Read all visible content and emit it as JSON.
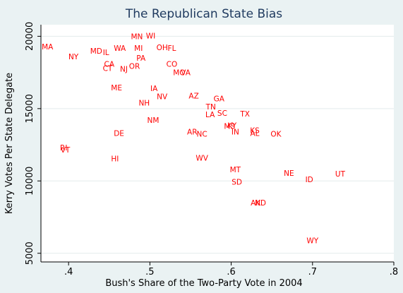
{
  "chart_data": {
    "type": "scatter",
    "title": "The Republican State Bias",
    "xlabel": "Bush's Share of the Two-Party Vote in 2004",
    "ylabel": "Kerry Votes Per State Delegate",
    "xlim": [
      0.366,
      0.8
    ],
    "ylim": [
      4400,
      20800
    ],
    "x_ticks": [
      0.4,
      0.5,
      0.6,
      0.7,
      0.8
    ],
    "x_tick_labels": [
      ".4",
      ".5",
      ".6",
      ".7",
      ".8"
    ],
    "y_ticks": [
      5000,
      10000,
      15000,
      20000
    ],
    "y_tick_labels": [
      "5000",
      "10000",
      "15000",
      "20000"
    ],
    "grid": "horizontal",
    "marker_color": "#ff0000",
    "points": [
      {
        "label": "MA",
        "x": 0.374,
        "y": 19250
      },
      {
        "label": "NY",
        "x": 0.406,
        "y": 18550
      },
      {
        "label": "MD",
        "x": 0.434,
        "y": 18950
      },
      {
        "label": "IL",
        "x": 0.446,
        "y": 18850
      },
      {
        "label": "CA",
        "x": 0.45,
        "y": 18050
      },
      {
        "label": "CT",
        "x": 0.448,
        "y": 17750
      },
      {
        "label": "WA",
        "x": 0.463,
        "y": 19150
      },
      {
        "label": "NJ",
        "x": 0.468,
        "y": 17700
      },
      {
        "label": "OR",
        "x": 0.481,
        "y": 17900
      },
      {
        "label": "PA",
        "x": 0.489,
        "y": 18450
      },
      {
        "label": "MI",
        "x": 0.486,
        "y": 19150
      },
      {
        "label": "MN",
        "x": 0.484,
        "y": 19950
      },
      {
        "label": "WI",
        "x": 0.501,
        "y": 20000
      },
      {
        "label": "OH",
        "x": 0.515,
        "y": 19200
      },
      {
        "label": "FL",
        "x": 0.527,
        "y": 19150
      },
      {
        "label": "CO",
        "x": 0.527,
        "y": 18050
      },
      {
        "label": "MO",
        "x": 0.536,
        "y": 17450
      },
      {
        "label": "VA",
        "x": 0.544,
        "y": 17450
      },
      {
        "label": "ME",
        "x": 0.459,
        "y": 16400
      },
      {
        "label": "IA",
        "x": 0.505,
        "y": 16350
      },
      {
        "label": "NV",
        "x": 0.515,
        "y": 15800
      },
      {
        "label": "NH",
        "x": 0.493,
        "y": 15350
      },
      {
        "label": "AZ",
        "x": 0.554,
        "y": 15850
      },
      {
        "label": "GA",
        "x": 0.585,
        "y": 15650
      },
      {
        "label": "TN",
        "x": 0.575,
        "y": 15100
      },
      {
        "label": "LA",
        "x": 0.574,
        "y": 14550
      },
      {
        "label": "SC",
        "x": 0.589,
        "y": 14650
      },
      {
        "label": "TX",
        "x": 0.617,
        "y": 14600
      },
      {
        "label": "NM",
        "x": 0.504,
        "y": 14150
      },
      {
        "label": "MS",
        "x": 0.598,
        "y": 13750
      },
      {
        "label": "KY",
        "x": 0.601,
        "y": 13800
      },
      {
        "label": "KS",
        "x": 0.629,
        "y": 13450
      },
      {
        "label": "IN",
        "x": 0.605,
        "y": 13350
      },
      {
        "label": "AL",
        "x": 0.629,
        "y": 13250
      },
      {
        "label": "OK",
        "x": 0.655,
        "y": 13200
      },
      {
        "label": "AR",
        "x": 0.552,
        "y": 13350
      },
      {
        "label": "NC",
        "x": 0.564,
        "y": 13200
      },
      {
        "label": "DE",
        "x": 0.462,
        "y": 13250
      },
      {
        "label": "RI",
        "x": 0.394,
        "y": 12250
      },
      {
        "label": "VT",
        "x": 0.396,
        "y": 12100
      },
      {
        "label": "HI",
        "x": 0.457,
        "y": 11500
      },
      {
        "label": "WV",
        "x": 0.564,
        "y": 11550
      },
      {
        "label": "MT",
        "x": 0.605,
        "y": 10750
      },
      {
        "label": "SD",
        "x": 0.607,
        "y": 9900
      },
      {
        "label": "NE",
        "x": 0.671,
        "y": 10500
      },
      {
        "label": "ID",
        "x": 0.696,
        "y": 10050
      },
      {
        "label": "UT",
        "x": 0.734,
        "y": 10450
      },
      {
        "label": "AK",
        "x": 0.63,
        "y": 8450
      },
      {
        "label": "ND",
        "x": 0.636,
        "y": 8450
      },
      {
        "label": "WY",
        "x": 0.7,
        "y": 5850
      }
    ]
  }
}
